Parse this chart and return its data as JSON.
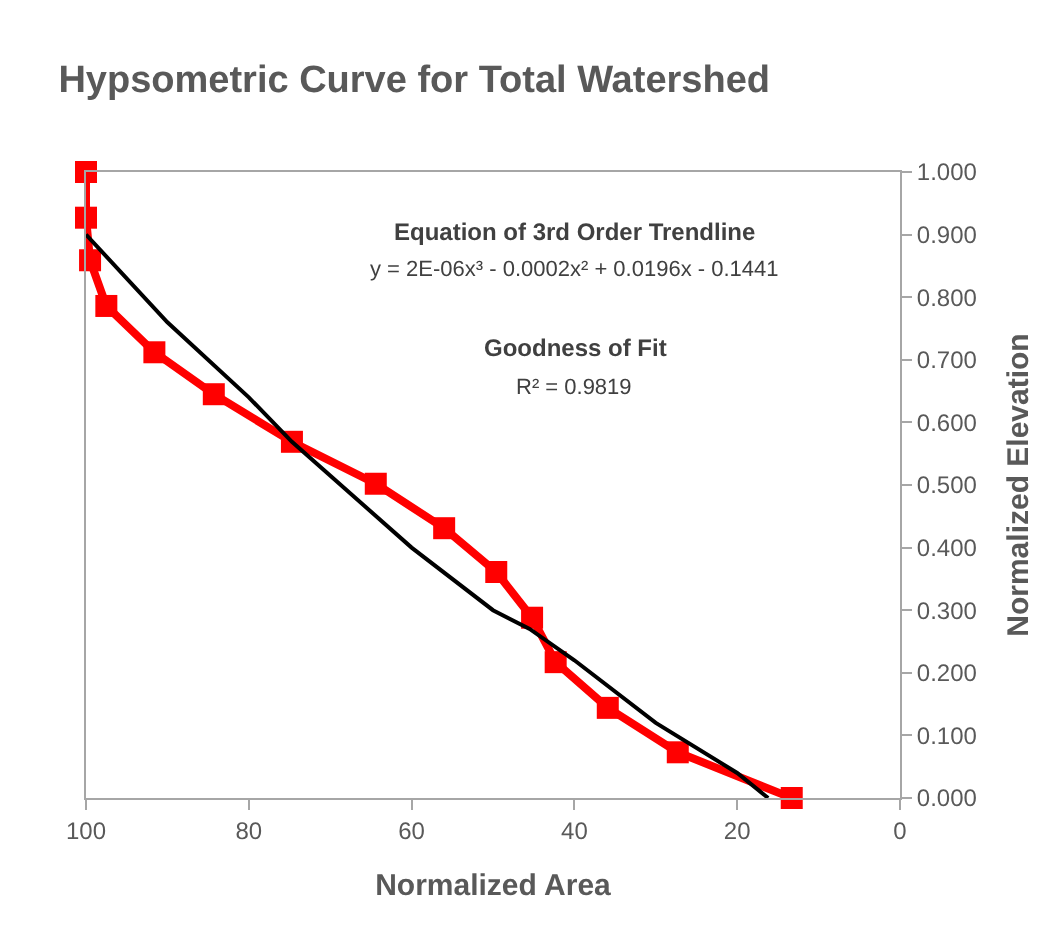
{
  "chart_data": {
    "type": "line",
    "title": "Hypsometric Curve for Total Watershed",
    "xlabel": "Normalized Area",
    "ylabel": "Normalized Elevation",
    "xlim": [
      100,
      0
    ],
    "xticks": [
      100,
      80,
      60,
      40,
      20,
      0
    ],
    "ylim": [
      0,
      1
    ],
    "yticks": [
      {
        "value": 0,
        "label": "0.000"
      },
      {
        "value": 0.1,
        "label": "0.100"
      },
      {
        "value": 0.2,
        "label": "0.200"
      },
      {
        "value": 0.3,
        "label": "0.300"
      },
      {
        "value": 0.4,
        "label": "0.400"
      },
      {
        "value": 0.5,
        "label": "0.500"
      },
      {
        "value": 0.6,
        "label": "0.600"
      },
      {
        "value": 0.7,
        "label": "0.700"
      },
      {
        "value": 0.8,
        "label": "0.800"
      },
      {
        "value": 0.9,
        "label": "0.900"
      },
      {
        "value": 1,
        "label": "1.000"
      }
    ],
    "series": [
      {
        "color": "#ff0000",
        "marker": "square",
        "line_style": "solid",
        "x": [
          100,
          100,
          99.5,
          97.5,
          91.6,
          84.3,
          74.7,
          64.4,
          56.0,
          49.6,
          45.2,
          42.3,
          35.9,
          27.3,
          13.3
        ],
        "values": [
          1.0,
          0.927,
          0.859,
          0.786,
          0.712,
          0.645,
          0.569,
          0.502,
          0.431,
          0.361,
          0.288,
          0.217,
          0.144,
          0.073,
          0.0
        ]
      },
      {
        "color": "#000000",
        "marker": "none",
        "line_style": "solid",
        "x": [
          100,
          90,
          80,
          74.7,
          60,
          50,
          45.5,
          40,
          30,
          20,
          16.2
        ],
        "values": [
          0.9,
          0.76,
          0.64,
          0.569,
          0.4,
          0.3,
          0.27,
          0.22,
          0.12,
          0.04,
          0.0
        ]
      }
    ],
    "annotations": [
      "Equation of 3rd Order Trendline",
      "y = 2E-06x³ - 0.0002x² + 0.0196x - 0.1441",
      "Goodness of Fit",
      "R² = 0.9819"
    ]
  }
}
